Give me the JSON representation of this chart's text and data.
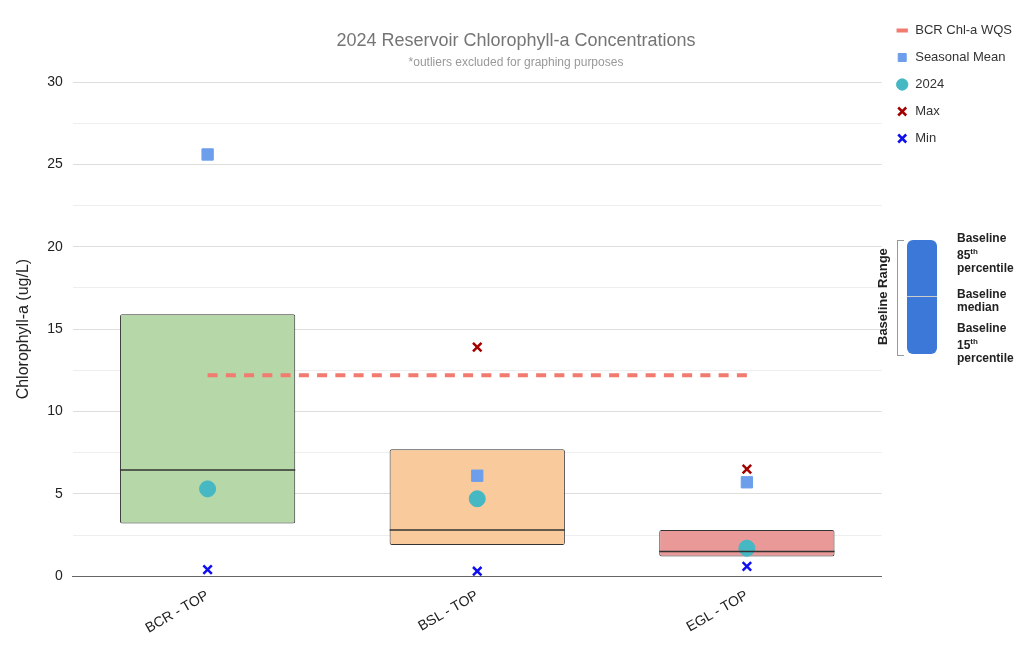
{
  "chart_data": {
    "type": "box",
    "title": "2024 Reservoir Chlorophyll-a Concentrations",
    "subtitle": "*outliers excluded for graphing purposes",
    "ylabel": "Chlorophyll-a (ug/L)",
    "categories": [
      "BCR - TOP",
      "BSL - TOP",
      "EGL - TOP"
    ],
    "series": [
      {
        "colors": [
          "#b6d7a8",
          "#f9cb9c",
          "#ea9999"
        ],
        "boxes": [
          {
            "low": 3.2,
            "q1": 3.2,
            "median": 6.45,
            "q3": 15.9,
            "high": 15.9
          },
          {
            "low": 1.9,
            "q1": 1.9,
            "median": 2.8,
            "q3": 7.7,
            "high": 7.7
          },
          {
            "low": 1.2,
            "q1": 1.2,
            "median": 1.5,
            "q3": 2.8,
            "high": 2.8
          }
        ]
      },
      {
        "type": "line",
        "name": "BCR Chl-a WQS",
        "color": "#f07b6e",
        "line_style": "dashed",
        "values": [
          12.2,
          12.2,
          12.2
        ]
      },
      {
        "type": "scatter",
        "name": "Seasonal Mean",
        "color": "#6d9eeb",
        "marker": "square",
        "values": [
          25.6,
          6.1,
          5.7
        ]
      },
      {
        "type": "scatter",
        "name": "2024",
        "color": "#45b8c3",
        "marker": "circle",
        "values": [
          5.3,
          4.7,
          1.7
        ]
      },
      {
        "type": "scatter",
        "name": "Max",
        "color": "#a30000",
        "marker": "cross",
        "values": [
          null,
          13.9,
          6.5
        ]
      },
      {
        "type": "scatter",
        "name": "Min",
        "color": "#1010ee",
        "marker": "cross",
        "values": [
          0.4,
          0.3,
          0.6
        ]
      }
    ],
    "ylim": [
      0,
      30
    ],
    "yticks": [
      0,
      {
        "value": 2.5,
        "label": null
      },
      5,
      {
        "value": 7.5,
        "label": null
      },
      10,
      {
        "value": 12.5,
        "label": null
      },
      15,
      {
        "value": 17.5,
        "label": null
      },
      20,
      {
        "value": 22.5,
        "label": null
      },
      25,
      {
        "value": 27.5,
        "label": null
      },
      30
    ],
    "grid": "y",
    "legend": "top right",
    "annotations": [
      "Baseline Range",
      "Baseline 85$^{th}$ percentile",
      "Baseline median",
      "Baseline 15$^{th}$ percentile"
    ]
  }
}
